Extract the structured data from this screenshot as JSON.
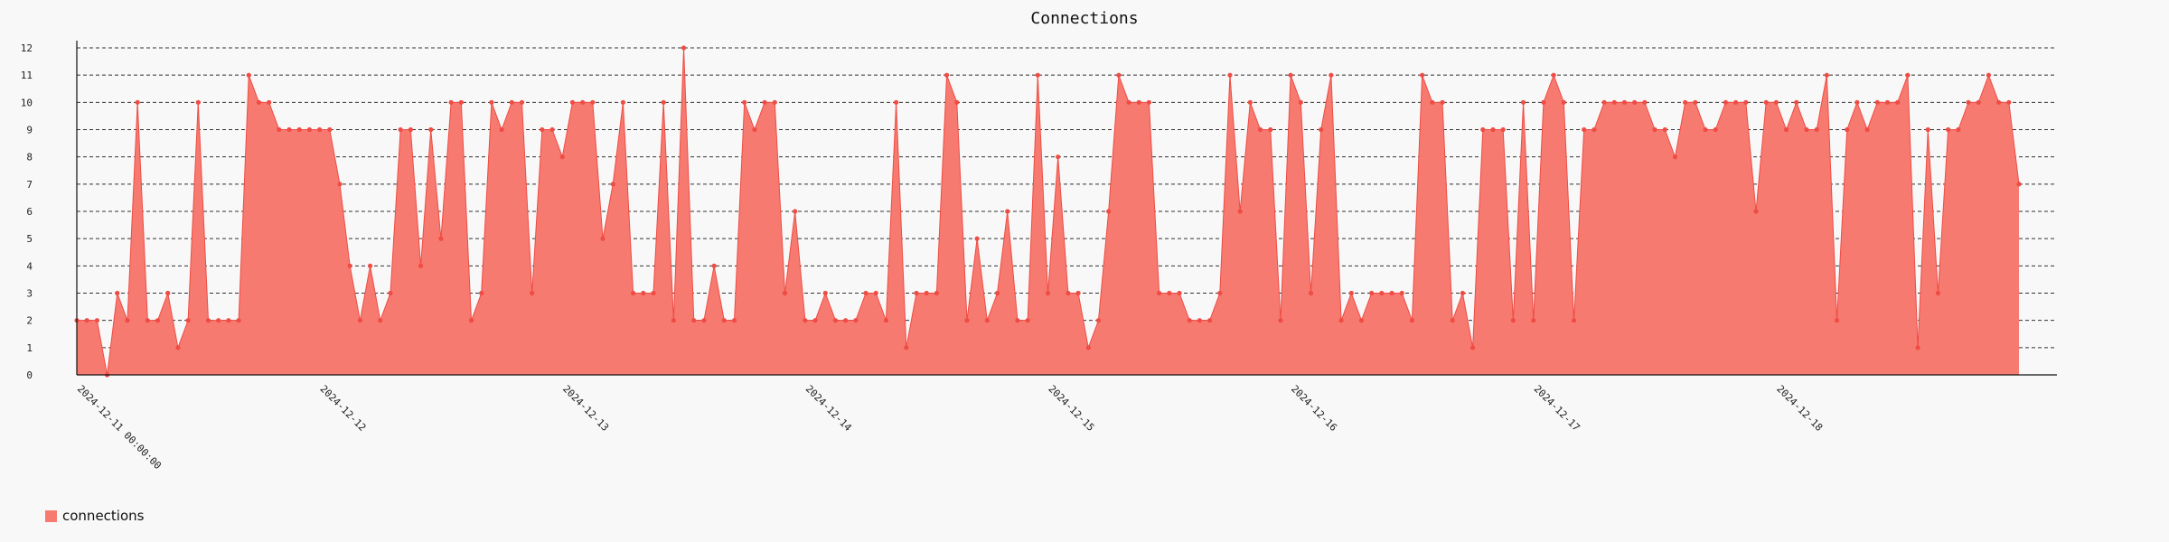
{
  "colors": {
    "fill": "#f77a70",
    "line": "#ee4c44",
    "point": "#ee4c44",
    "grid": "#333333",
    "axis": "#111111"
  },
  "chart_data": {
    "type": "area",
    "title": "Connections",
    "xlabel": "",
    "ylabel": "",
    "ylim": [
      0,
      12
    ],
    "yticks": [
      0,
      1,
      2,
      3,
      4,
      5,
      6,
      7,
      8,
      9,
      10,
      11,
      12
    ],
    "grid": true,
    "legend": "bottom-left",
    "x_tick_labels": [
      "2024-12-11 00:00:00",
      "2024-12-12",
      "2024-12-13",
      "2024-12-14",
      "2024-12-15",
      "2024-12-16",
      "2024-12-17",
      "2024-12-18"
    ],
    "x_start": "2024-12-11 00:00",
    "x_interval": "1h",
    "series": [
      {
        "name": "connections",
        "values": [
          2,
          2,
          2,
          0,
          3,
          2,
          10,
          2,
          2,
          3,
          1,
          2,
          10,
          2,
          2,
          2,
          2,
          11,
          10,
          10,
          9,
          9,
          9,
          9,
          9,
          9,
          7,
          4,
          2,
          4,
          2,
          3,
          9,
          9,
          4,
          9,
          5,
          10,
          10,
          2,
          3,
          10,
          9,
          10,
          10,
          3,
          9,
          9,
          8,
          10,
          10,
          10,
          5,
          7,
          10,
          3,
          3,
          3,
          10,
          2,
          12,
          2,
          2,
          4,
          2,
          2,
          10,
          9,
          10,
          10,
          3,
          6,
          2,
          2,
          3,
          2,
          2,
          2,
          3,
          3,
          2,
          10,
          1,
          3,
          3,
          3,
          11,
          10,
          2,
          5,
          2,
          3,
          6,
          2,
          2,
          11,
          3,
          8,
          3,
          3,
          1,
          2,
          6,
          11,
          10,
          10,
          10,
          3,
          3,
          3,
          2,
          2,
          2,
          3,
          11,
          6,
          10,
          9,
          9,
          2,
          11,
          10,
          3,
          9,
          11,
          2,
          3,
          2,
          3,
          3,
          3,
          3,
          2,
          11,
          10,
          10,
          2,
          3,
          1,
          9,
          9,
          9,
          2,
          10,
          2,
          10,
          11,
          10,
          2,
          9,
          9,
          10,
          10,
          10,
          10,
          10,
          9,
          9,
          8,
          10,
          10,
          9,
          9,
          10,
          10,
          10,
          6,
          10,
          10,
          9,
          10,
          9,
          9,
          11,
          2,
          9,
          10,
          9,
          10,
          10,
          10,
          11,
          1,
          9,
          3,
          9,
          9,
          10,
          10,
          11,
          10,
          10,
          7
        ]
      }
    ]
  }
}
